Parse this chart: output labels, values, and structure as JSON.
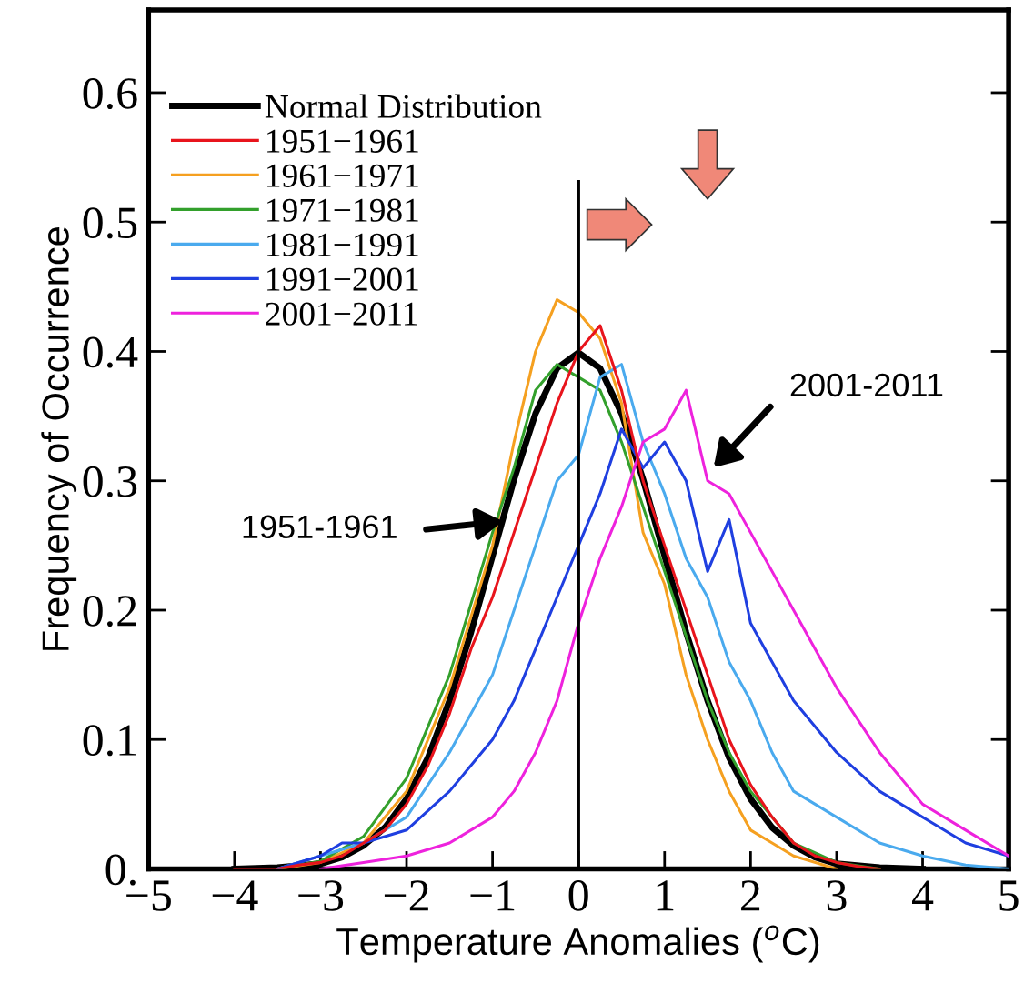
{
  "chart_data": {
    "type": "line",
    "xlabel": "Temperature Anomalies ($^{o}$C)",
    "ylabel": "Frequency of Occurrence",
    "xlim": [
      -5,
      5
    ],
    "ylim": [
      0,
      0.664
    ],
    "xticks": [
      {
        "value": -5,
        "label": "−5"
      },
      {
        "value": -4,
        "label": "−4"
      },
      {
        "value": -3,
        "label": "−3"
      },
      {
        "value": -2,
        "label": "−2"
      },
      {
        "value": -1,
        "label": "−1"
      },
      0,
      1,
      2,
      3,
      4,
      5
    ],
    "yticks": [
      {
        "value": 0,
        "label": "0."
      },
      0.1,
      0.2,
      0.3,
      0.4,
      0.5,
      0.6
    ],
    "grid": false,
    "legend": "top left",
    "line_style": "solid",
    "marker": "none",
    "ref_lines": [
      {
        "axis": "x",
        "value": 0,
        "color": "#000000"
      }
    ],
    "annotations": [
      "1951-1961",
      "2001-2011"
    ],
    "series": [
      {
        "name": "Normal Distribution",
        "color": "#000000",
        "x": [
          -4,
          -3.5,
          -3,
          -2.75,
          -2.5,
          -2.25,
          -2,
          -1.75,
          -1.5,
          -1.25,
          -1,
          -0.75,
          -0.5,
          -0.25,
          0,
          0.25,
          0.5,
          0.75,
          1,
          1.25,
          1.5,
          1.75,
          2,
          2.25,
          2.5,
          2.75,
          3,
          3.5,
          4
        ],
        "values": [
          0.0,
          0.001,
          0.004,
          0.009,
          0.018,
          0.032,
          0.054,
          0.086,
          0.13,
          0.183,
          0.242,
          0.301,
          0.352,
          0.387,
          0.399,
          0.387,
          0.352,
          0.301,
          0.242,
          0.183,
          0.13,
          0.086,
          0.054,
          0.032,
          0.018,
          0.009,
          0.004,
          0.001,
          0.0
        ]
      },
      {
        "name": "1951−1961",
        "color": "#e8141c",
        "x": [
          -4,
          -3.5,
          -3.25,
          -3,
          -2.75,
          -2.5,
          -2.25,
          -2,
          -1.75,
          -1.5,
          -1.25,
          -1,
          -0.75,
          -0.5,
          -0.25,
          0,
          0.25,
          0.5,
          0.75,
          1,
          1.25,
          1.5,
          1.75,
          2,
          2.25,
          2.5,
          2.75,
          3,
          3.25,
          3.5
        ],
        "values": [
          0,
          0,
          0.003,
          0.005,
          0.01,
          0.02,
          0.03,
          0.05,
          0.08,
          0.12,
          0.17,
          0.21,
          0.26,
          0.31,
          0.36,
          0.4,
          0.42,
          0.37,
          0.3,
          0.25,
          0.2,
          0.15,
          0.1,
          0.065,
          0.04,
          0.02,
          0.01,
          0.005,
          0.002,
          0
        ]
      },
      {
        "name": "1961−1971",
        "color": "#f5a020",
        "x": [
          -3.5,
          -3,
          -2.5,
          -2,
          -1.5,
          -1,
          -0.75,
          -0.5,
          -0.25,
          0,
          0.25,
          0.5,
          0.75,
          1,
          1.25,
          1.5,
          1.75,
          2,
          2.25,
          2.5,
          3
        ],
        "values": [
          0,
          0.005,
          0.02,
          0.06,
          0.14,
          0.25,
          0.33,
          0.4,
          0.44,
          0.43,
          0.41,
          0.36,
          0.26,
          0.22,
          0.15,
          0.1,
          0.06,
          0.03,
          0.02,
          0.01,
          0
        ]
      },
      {
        "name": "1971−1981",
        "color": "#33a02c",
        "x": [
          -3.5,
          -3,
          -2.5,
          -2,
          -1.5,
          -1,
          -0.75,
          -0.5,
          -0.25,
          0,
          0.25,
          0.5,
          0.75,
          1,
          1.25,
          1.5,
          1.75,
          2,
          2.5,
          3,
          3.5
        ],
        "values": [
          0,
          0.006,
          0.025,
          0.07,
          0.15,
          0.26,
          0.31,
          0.37,
          0.39,
          0.38,
          0.37,
          0.33,
          0.28,
          0.23,
          0.18,
          0.13,
          0.09,
          0.06,
          0.02,
          0.005,
          0
        ]
      },
      {
        "name": "1981−1991",
        "color": "#4aaaee",
        "x": [
          -3.5,
          -3,
          -2.5,
          -2,
          -1.5,
          -1.25,
          -1,
          -0.75,
          -0.5,
          -0.25,
          0,
          0.25,
          0.5,
          0.75,
          1,
          1.25,
          1.5,
          1.75,
          2,
          2.25,
          2.5,
          3,
          3.5,
          4,
          4.5,
          5
        ],
        "values": [
          0,
          0.01,
          0.02,
          0.04,
          0.09,
          0.12,
          0.15,
          0.2,
          0.25,
          0.3,
          0.32,
          0.38,
          0.39,
          0.33,
          0.29,
          0.24,
          0.21,
          0.16,
          0.13,
          0.09,
          0.06,
          0.04,
          0.02,
          0.01,
          0.003,
          0
        ]
      },
      {
        "name": "1991−2001",
        "color": "#1f3fe0",
        "x": [
          -3.5,
          -3,
          -2.75,
          -2.5,
          -2,
          -1.5,
          -1,
          -0.75,
          -0.5,
          -0.25,
          0,
          0.25,
          0.5,
          0.75,
          1,
          1.25,
          1.5,
          1.75,
          2,
          2.5,
          3,
          3.5,
          4,
          4.5,
          5
        ],
        "values": [
          0,
          0.01,
          0.02,
          0.02,
          0.03,
          0.06,
          0.1,
          0.13,
          0.17,
          0.21,
          0.25,
          0.29,
          0.34,
          0.31,
          0.33,
          0.3,
          0.23,
          0.27,
          0.19,
          0.13,
          0.09,
          0.06,
          0.04,
          0.02,
          0.01
        ]
      },
      {
        "name": "2001−2011",
        "color": "#ee22dd",
        "x": [
          -3,
          -2.5,
          -2,
          -1.5,
          -1,
          -0.75,
          -0.5,
          -0.25,
          0,
          0.25,
          0.5,
          0.75,
          1,
          1.25,
          1.5,
          1.75,
          2,
          2.5,
          3,
          3.5,
          4,
          4.5,
          5
        ],
        "values": [
          0,
          0.005,
          0.01,
          0.02,
          0.04,
          0.06,
          0.09,
          0.13,
          0.19,
          0.24,
          0.28,
          0.33,
          0.34,
          0.37,
          0.3,
          0.29,
          0.26,
          0.2,
          0.14,
          0.09,
          0.05,
          0.03,
          0.01
        ]
      }
    ]
  }
}
